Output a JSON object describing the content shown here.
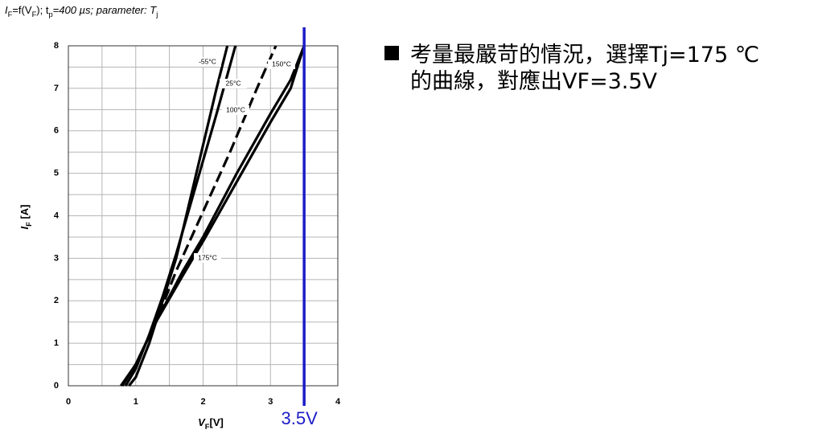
{
  "chart_data": {
    "type": "line",
    "title_parts": [
      "I",
      "F",
      "=f(V",
      "F",
      "); t",
      "p",
      "=400 µs; parameter: T",
      "j"
    ],
    "xlabel_parts": [
      "V",
      "F",
      "[V]"
    ],
    "ylabel_parts": [
      "I",
      "F",
      " [A]"
    ],
    "xlim": [
      0,
      4
    ],
    "ylim": [
      0,
      8
    ],
    "xticks": [
      0,
      1,
      2,
      3,
      4
    ],
    "yticks": [
      0,
      1,
      2,
      3,
      4,
      5,
      6,
      7,
      8
    ],
    "xminor": [
      0.5,
      1.5,
      2.5,
      3.5
    ],
    "yminor": [
      0.5,
      1.5,
      2.5,
      3.5,
      4.5,
      5.5,
      6.5,
      7.5
    ],
    "grid": true,
    "series": [
      {
        "name": "-55°C",
        "color": "#000000",
        "x": [
          0.9,
          1.0,
          1.2,
          1.4,
          1.6,
          1.75,
          1.9,
          2.05,
          2.2,
          2.36
        ],
        "values": [
          0,
          0.2,
          1,
          2,
          3,
          4,
          5,
          6,
          7,
          8
        ]
      },
      {
        "name": "25°C",
        "color": "#000000",
        "x": [
          0.85,
          1.0,
          1.2,
          1.4,
          1.6,
          1.8,
          2.0,
          2.2,
          2.48
        ],
        "values": [
          0,
          0.4,
          1.2,
          2.1,
          3.1,
          4.2,
          5.3,
          6.4,
          8
        ]
      },
      {
        "name": "100°C",
        "color": "#000000",
        "x": [
          0.8,
          1.0,
          1.3,
          1.6,
          2.0,
          2.4,
          2.8,
          3.08
        ],
        "values": [
          0,
          0.5,
          1.5,
          2.7,
          4.1,
          5.5,
          7,
          8
        ]
      },
      {
        "name": "150°C",
        "color": "#000000",
        "x": [
          0.8,
          1.0,
          1.3,
          1.7,
          2.0,
          2.5,
          3.0,
          3.3,
          3.5
        ],
        "values": [
          0,
          0.5,
          1.5,
          2.7,
          3.5,
          5.0,
          6.4,
          7.2,
          8
        ]
      },
      {
        "name": "175°C",
        "color": "#000000",
        "x": [
          0.78,
          1.0,
          1.3,
          1.7,
          2.0,
          2.5,
          3.0,
          3.3,
          3.5
        ],
        "values": [
          0,
          0.5,
          1.5,
          2.6,
          3.4,
          4.8,
          6.2,
          7.0,
          8
        ]
      }
    ],
    "marker": {
      "x": 3.5,
      "label": "3.5V",
      "color": "#1c1cc8"
    }
  },
  "notes": [
    "考量最嚴苛的情況，選擇Tj=175 ℃",
    "的曲線，對應出VF=3.5V"
  ]
}
